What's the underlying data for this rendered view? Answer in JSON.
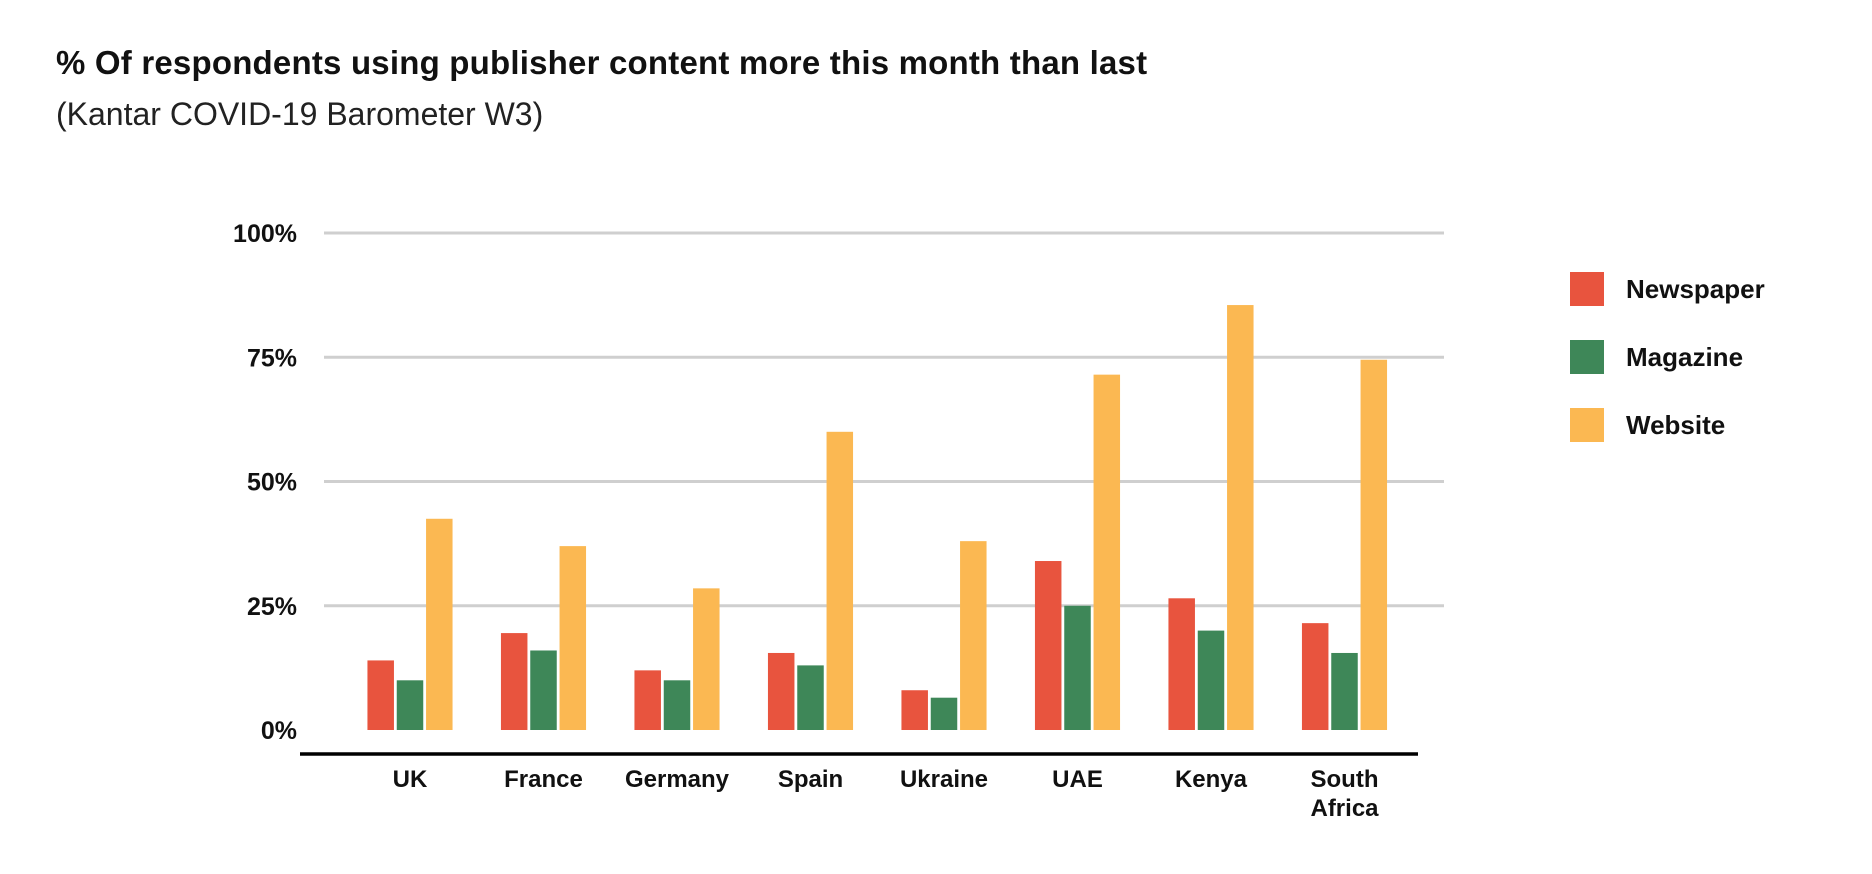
{
  "chart_data": {
    "type": "bar",
    "title": "% Of respondents using publisher content more this month than last",
    "subtitle": "(Kantar COVID-19 Barometer W3)",
    "xlabel": "",
    "ylabel": "",
    "ylim": [
      0,
      100
    ],
    "yticks": [
      {
        "value": 0,
        "label": "0%"
      },
      {
        "value": 25,
        "label": "25%"
      },
      {
        "value": 50,
        "label": "50%"
      },
      {
        "value": 75,
        "label": "75%"
      },
      {
        "value": 100,
        "label": "100%"
      }
    ],
    "grid": true,
    "legend_position": "right",
    "categories": [
      [
        "UK"
      ],
      [
        "France"
      ],
      [
        "Germany"
      ],
      [
        "Spain"
      ],
      [
        "Ukraine"
      ],
      [
        "UAE"
      ],
      [
        "Kenya"
      ],
      [
        "South",
        "Africa"
      ]
    ],
    "series": [
      {
        "name": "Newspaper",
        "color": "#E8543E",
        "values": [
          14,
          19.5,
          12,
          15.5,
          8,
          34,
          26.5,
          21.5
        ]
      },
      {
        "name": "Magazine",
        "color": "#3E8758",
        "values": [
          10,
          16,
          10,
          13,
          6.5,
          25,
          20,
          15.5
        ]
      },
      {
        "name": "Website",
        "color": "#FBB852",
        "values": [
          42.5,
          37,
          28.5,
          60,
          38,
          71.5,
          85.5,
          74.5
        ]
      }
    ]
  }
}
